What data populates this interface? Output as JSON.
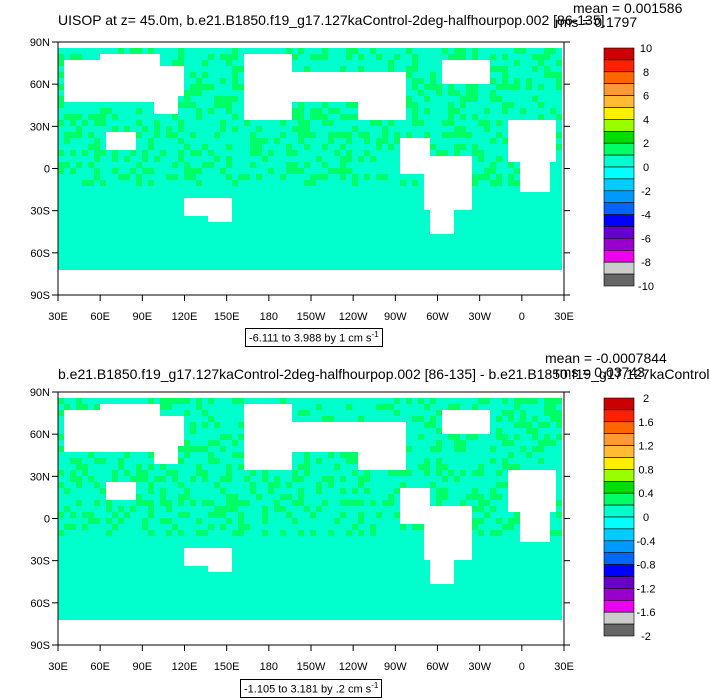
{
  "panels": [
    {
      "title": "UISOP at z=  45.0m, b.e21.B1850.f19_g17.127kaControl-2deg-halfhourpop.002 [86-135]",
      "mean": "mean = 0.001586",
      "rms": "rms = 0.1797",
      "contour_info": "-6.111 to 3.988 by 1 cm s",
      "contour_sup": "-1"
    },
    {
      "title": "b.e21.B1850.f19_g17.127kaControl-2deg-halfhourpop.002 [86-135] - b.e21.B1850.f19_g17.127kaControl",
      "mean": "mean = -0.0007844",
      "rms": "rms = 0.03743",
      "contour_info": "-1.105 to 3.181 by .2 cm s",
      "contour_sup": "-1"
    }
  ],
  "colors": {
    "land": "#ffffff",
    "ocean_main": "#00ff66",
    "ocean_alt": "#00ffcc",
    "frame": "#000000"
  },
  "chart_data": [
    {
      "type": "heatmap",
      "title": "UISOP at z=  45.0m, b.e21.B1850.f19_g17.127kaControl-2deg-halfhourpop.002 [86-135]",
      "y_ticks": [
        "90N",
        "60N",
        "30N",
        "0",
        "30S",
        "60S",
        "90S"
      ],
      "x_ticks": [
        "30E",
        "60E",
        "90E",
        "120E",
        "150E",
        "180",
        "150W",
        "120W",
        "90W",
        "60W",
        "30W",
        "0",
        "30E"
      ],
      "colorbar_labels": [
        "10",
        "8",
        "6",
        "4",
        "2",
        "0",
        "-2",
        "-4",
        "-6",
        "-8",
        "-10"
      ],
      "colorbar_colors": [
        "#cc0000",
        "#ff2200",
        "#ff6600",
        "#ff9933",
        "#ffbb33",
        "#ffee00",
        "#99ff00",
        "#00dd00",
        "#00ff66",
        "#00ffcc",
        "#00ffff",
        "#00ccff",
        "#0099ff",
        "#0066ff",
        "#0000ff",
        "#6600cc",
        "#9900cc",
        "#ee00ee",
        "#cccccc",
        "#666666"
      ],
      "units": "cm s-1",
      "range": [
        -6.111,
        3.988
      ],
      "interval": 1
    },
    {
      "type": "heatmap",
      "title": "b.e21.B1850.f19_g17.127kaControl-2deg-halfhourpop.002 [86-135] - b.e21.B1850.f19_g17.127kaControl",
      "y_ticks": [
        "90N",
        "60N",
        "30N",
        "0",
        "30S",
        "60S",
        "90S"
      ],
      "x_ticks": [
        "30E",
        "60E",
        "90E",
        "120E",
        "150E",
        "180",
        "150W",
        "120W",
        "90W",
        "60W",
        "30W",
        "0",
        "30E"
      ],
      "colorbar_labels": [
        "2",
        "1.6",
        "1.2",
        "0.8",
        "0.4",
        "0",
        "-0.4",
        "-0.8",
        "-1.2",
        "-1.6",
        "-2"
      ],
      "colorbar_colors": [
        "#cc0000",
        "#ff2200",
        "#ff6600",
        "#ff9933",
        "#ffbb33",
        "#ffee00",
        "#99ff00",
        "#00dd00",
        "#00ff66",
        "#00ffcc",
        "#00ffff",
        "#00ccff",
        "#0099ff",
        "#0066ff",
        "#0000ff",
        "#6600cc",
        "#9900cc",
        "#ee00ee",
        "#cccccc",
        "#666666"
      ],
      "units": "cm s-1",
      "range": [
        -1.105,
        3.181
      ],
      "interval": 0.2
    }
  ]
}
